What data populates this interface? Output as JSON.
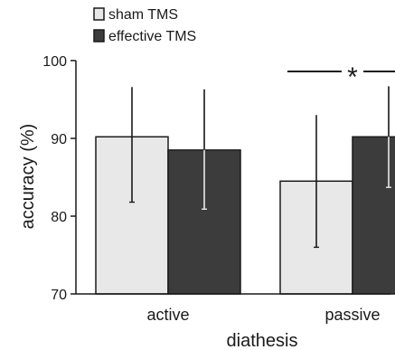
{
  "chart_data": {
    "type": "bar",
    "categories": [
      "active",
      "passive"
    ],
    "series": [
      {
        "name": "sham TMS",
        "color": "#e8e8e8",
        "values": [
          90.2,
          84.5
        ],
        "err_low": [
          81.8,
          76.0
        ],
        "err_high": [
          96.6,
          93.0
        ]
      },
      {
        "name": "effective TMS",
        "color": "#3c3c3c",
        "values": [
          88.5,
          90.2
        ],
        "err_low": [
          80.9,
          83.7
        ],
        "err_high": [
          96.3,
          96.7
        ]
      }
    ],
    "xlabel": "diathesis",
    "ylabel": "accuracy (%)",
    "ylim": [
      70,
      100
    ],
    "yticks": [
      70,
      80,
      90,
      100
    ],
    "legend_position": "top-left",
    "grid": false,
    "significance": {
      "category": "passive",
      "symbol": "*"
    }
  }
}
